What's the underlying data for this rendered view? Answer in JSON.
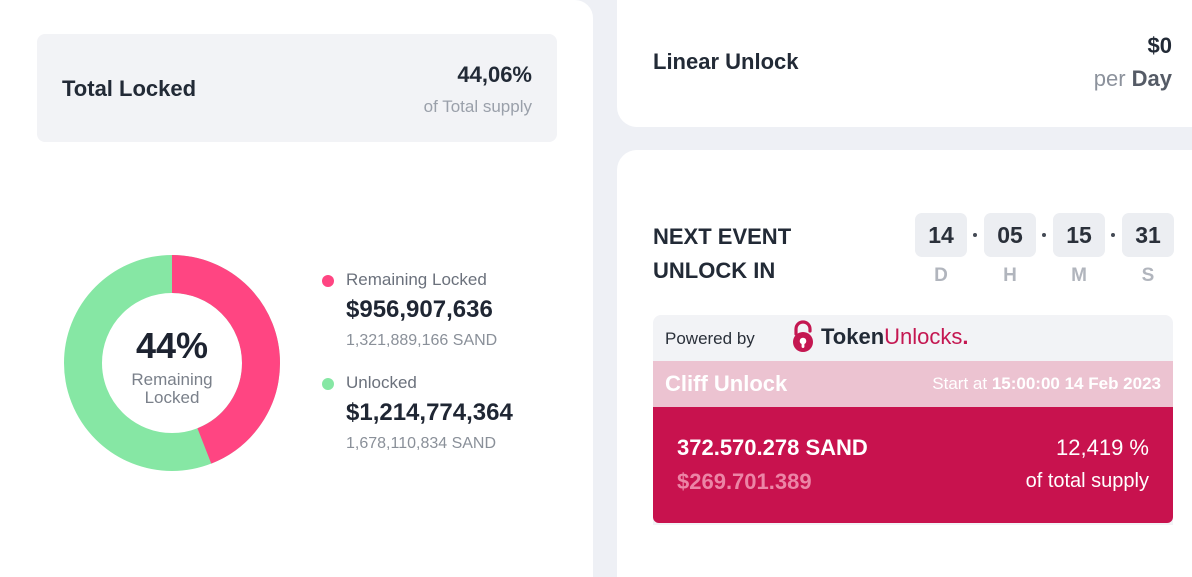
{
  "total_locked": {
    "title": "Total Locked",
    "percent": "44,06%",
    "subtitle": "of Total supply"
  },
  "donut": {
    "center_percent": "44%",
    "center_label_line1": "Remaining",
    "center_label_line2": "Locked",
    "locked_fraction": 0.4406,
    "locked_color": "#ff4582",
    "unlocked_color": "#86e7a4"
  },
  "legend": [
    {
      "name": "Remaining Locked",
      "value": "$956,907,636",
      "sand": "1,321,889,166 SAND",
      "color": "#ff4582"
    },
    {
      "name": "Unlocked",
      "value": "$1,214,774,364",
      "sand": "1,678,110,834 SAND",
      "color": "#86e7a4"
    }
  ],
  "linear_unlock": {
    "title": "Linear Unlock",
    "amount": "$0",
    "per_prefix": "per",
    "per_unit": "Day"
  },
  "next_event": {
    "title_line1": "NEXT EVENT",
    "title_line2": "UNLOCK IN",
    "countdown": [
      {
        "value": "14",
        "unit": "D"
      },
      {
        "value": "05",
        "unit": "H"
      },
      {
        "value": "15",
        "unit": "M"
      },
      {
        "value": "31",
        "unit": "S"
      }
    ]
  },
  "powered": {
    "label": "Powered by",
    "brand_bold": "Token",
    "brand_regular": "Unlocks",
    "brand_dot": ".",
    "accent_color": "#c41751"
  },
  "cliff": {
    "title": "Cliff Unlock",
    "start_prefix": "Start at",
    "start_value": "15:00:00 14 Feb 2023",
    "amount": "372.570.278 SAND",
    "usd": "$269.701.389",
    "percent": "12,419 %",
    "percent_label": "of total supply"
  }
}
